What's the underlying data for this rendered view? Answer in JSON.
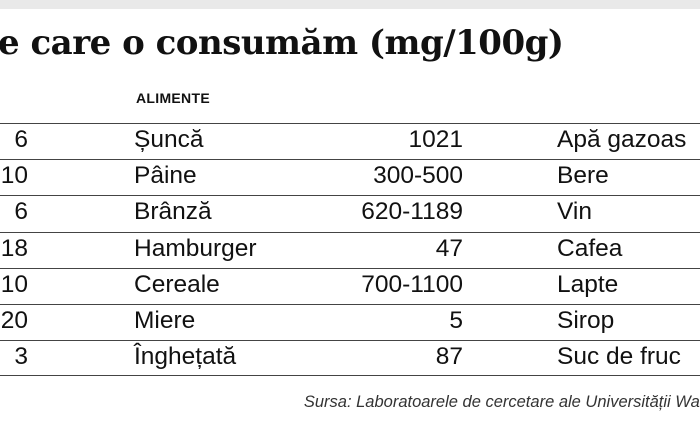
{
  "title": "e care o consumăm (mg/100g)",
  "column_header": "ALIMENTE",
  "rows": [
    {
      "left_value": "6",
      "food": "Șuncă",
      "value": "1021",
      "drink": "Apă gazoas"
    },
    {
      "left_value": "10",
      "food": "Pâine",
      "value": "300-500",
      "drink": "Bere"
    },
    {
      "left_value": "6",
      "food": "Brânză",
      "value": "620-1189",
      "drink": "Vin"
    },
    {
      "left_value": "18",
      "food": "Hamburger",
      "value": "47",
      "drink": "Cafea"
    },
    {
      "left_value": "10",
      "food": "Cereale",
      "value": "700-1100",
      "drink": "Lapte"
    },
    {
      "left_value": "20",
      "food": "Miere",
      "value": "5",
      "drink": "Sirop"
    },
    {
      "left_value": "3",
      "food": "Înghețată",
      "value": "87",
      "drink": "Suc de fruc"
    }
  ],
  "source": "Sursa: Laboratoarele de cercetare ale Universității Was"
}
